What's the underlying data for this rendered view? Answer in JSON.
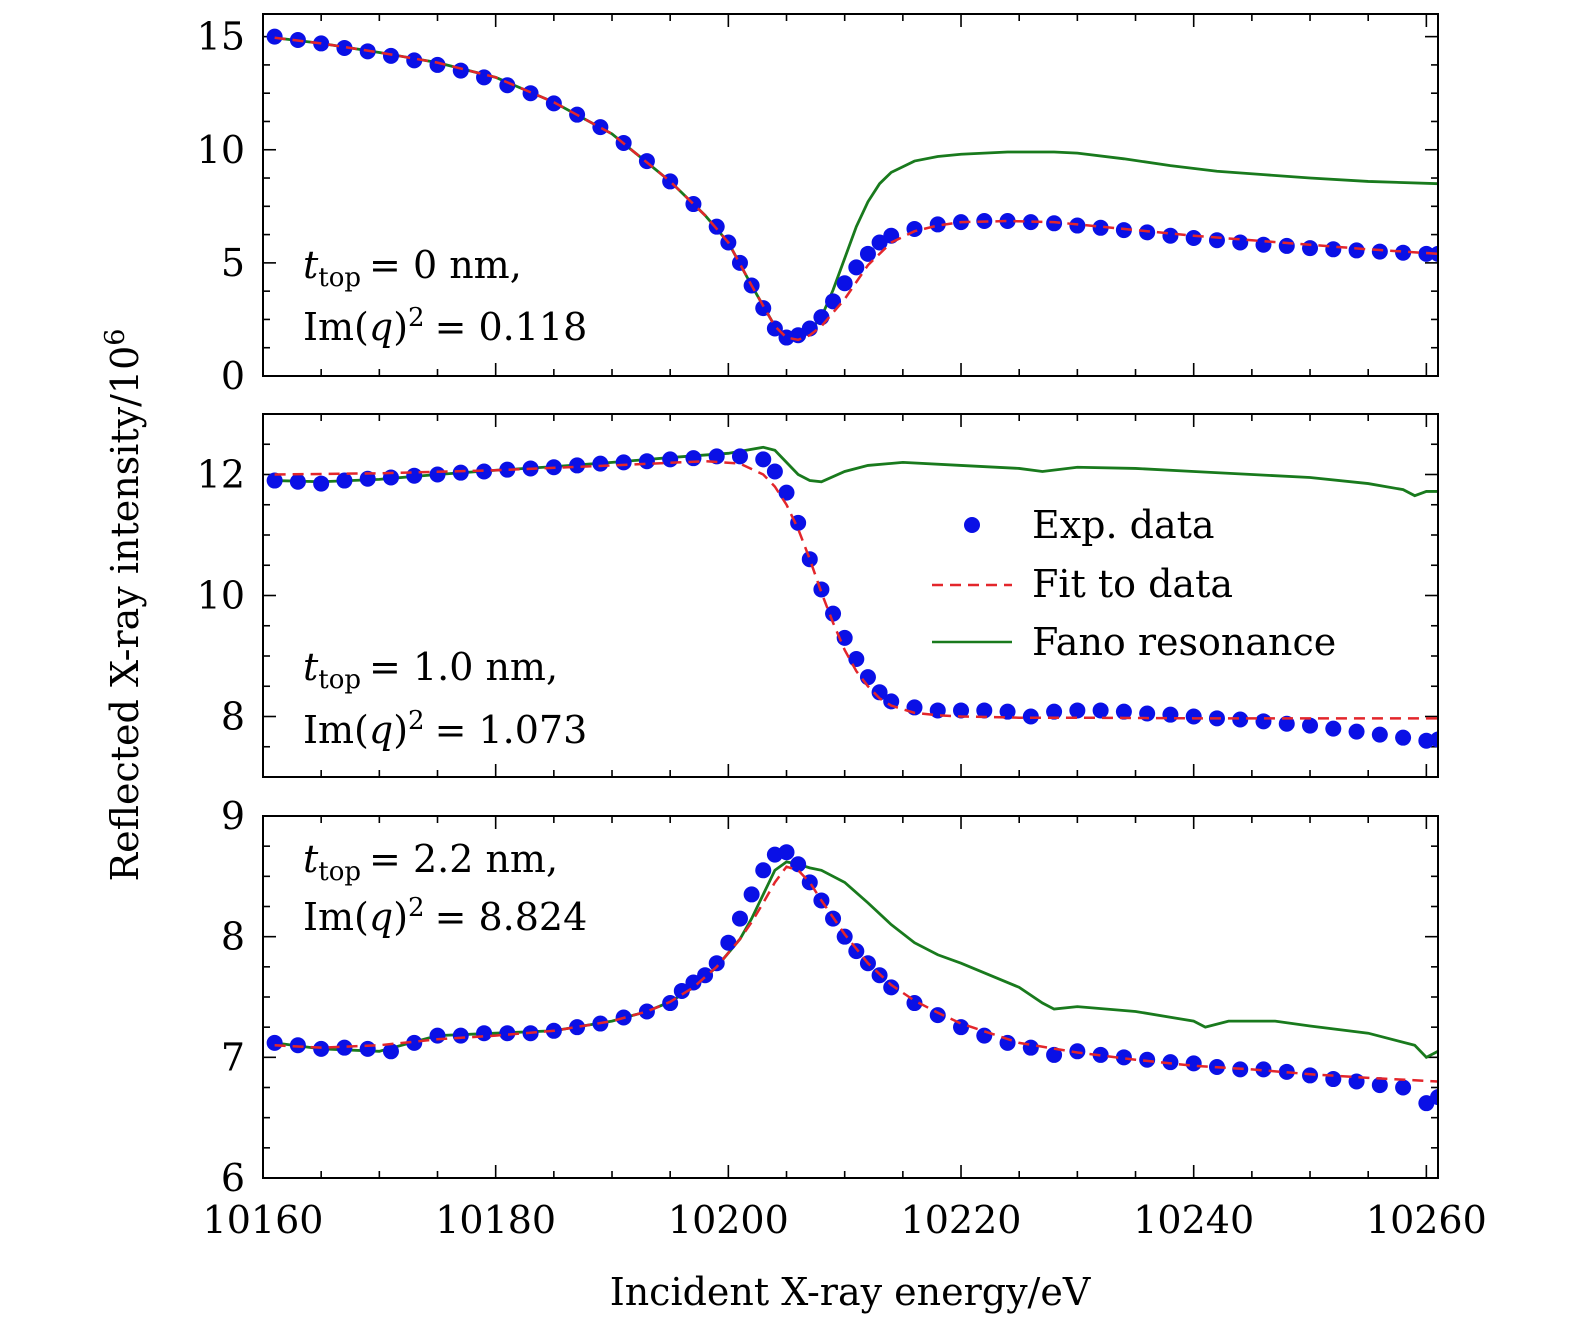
{
  "chart_data": {
    "type": "line",
    "xlabel": "Incident X-ray energy/eV",
    "ylabel_main": "Reflected X-ray intensity/10",
    "ylabel_exp": "6",
    "xlim": [
      10160,
      10261
    ],
    "xticks": [
      10160,
      10180,
      10200,
      10220,
      10240,
      10260
    ],
    "colors": {
      "exp": "#0a10e6",
      "fit": "#e3262b",
      "fano": "#197a1d"
    },
    "legend": {
      "placement": "middle-right of second panel",
      "entries": [
        {
          "key": "exp",
          "label": "Exp. data"
        },
        {
          "key": "fit",
          "label": "Fit to data"
        },
        {
          "key": "fano",
          "label": "Fano resonance"
        }
      ]
    },
    "panels": [
      {
        "ylim": [
          0,
          16
        ],
        "yticks": [
          0,
          5,
          10,
          15
        ],
        "annotation": {
          "t_value": "= 0 nm,",
          "imq_value": "= 0.118"
        },
        "exp": {
          "x": [
            10161,
            10163,
            10165,
            10167,
            10169,
            10171,
            10173,
            10175,
            10177,
            10179,
            10181,
            10183,
            10185,
            10187,
            10189,
            10191,
            10193,
            10195,
            10197,
            10199,
            10200,
            10201,
            10202,
            10203,
            10204,
            10205,
            10206,
            10207,
            10208,
            10209,
            10210,
            10211,
            10212,
            10213,
            10214,
            10216,
            10218,
            10220,
            10222,
            10224,
            10226,
            10228,
            10230,
            10232,
            10234,
            10236,
            10238,
            10240,
            10242,
            10244,
            10246,
            10248,
            10250,
            10252,
            10254,
            10256,
            10258,
            10260,
            10261
          ],
          "y": [
            15.0,
            14.85,
            14.7,
            14.5,
            14.35,
            14.15,
            13.95,
            13.75,
            13.5,
            13.2,
            12.85,
            12.5,
            12.05,
            11.55,
            11.0,
            10.3,
            9.5,
            8.6,
            7.6,
            6.6,
            5.9,
            5.0,
            4.0,
            3.0,
            2.1,
            1.7,
            1.8,
            2.1,
            2.6,
            3.3,
            4.1,
            4.8,
            5.4,
            5.9,
            6.2,
            6.5,
            6.7,
            6.8,
            6.85,
            6.85,
            6.8,
            6.75,
            6.65,
            6.55,
            6.45,
            6.35,
            6.2,
            6.1,
            6.0,
            5.9,
            5.8,
            5.75,
            5.65,
            5.6,
            5.55,
            5.5,
            5.45,
            5.4,
            5.4
          ]
        },
        "fit": {
          "x": [
            10161,
            10165,
            10170,
            10175,
            10180,
            10185,
            10190,
            10195,
            10198,
            10200,
            10202,
            10204,
            10205,
            10206,
            10207,
            10208,
            10210,
            10212,
            10214,
            10216,
            10218,
            10220,
            10224,
            10228,
            10232,
            10236,
            10240,
            10245,
            10250,
            10255,
            10261
          ],
          "y": [
            14.95,
            14.7,
            14.3,
            13.85,
            13.2,
            12.1,
            10.7,
            8.6,
            7.1,
            5.9,
            4.0,
            2.2,
            1.7,
            1.6,
            1.8,
            2.2,
            3.4,
            4.9,
            5.9,
            6.4,
            6.65,
            6.8,
            6.85,
            6.8,
            6.6,
            6.4,
            6.2,
            6.0,
            5.8,
            5.6,
            5.4
          ]
        },
        "fano": {
          "x": [
            10161,
            10165,
            10170,
            10175,
            10180,
            10185,
            10190,
            10195,
            10198,
            10200,
            10202,
            10204,
            10205,
            10206,
            10207,
            10208,
            10209,
            10210,
            10211,
            10212,
            10213,
            10214,
            10216,
            10218,
            10220,
            10224,
            10228,
            10230,
            10234,
            10238,
            10242,
            10246,
            10250,
            10255,
            10261
          ],
          "y": [
            14.95,
            14.7,
            14.3,
            13.85,
            13.2,
            12.1,
            10.7,
            8.6,
            7.1,
            5.9,
            4.0,
            2.2,
            1.7,
            1.7,
            2.0,
            2.6,
            3.8,
            5.2,
            6.6,
            7.7,
            8.5,
            9.0,
            9.5,
            9.7,
            9.8,
            9.9,
            9.9,
            9.85,
            9.6,
            9.3,
            9.05,
            8.9,
            8.75,
            8.6,
            8.5
          ]
        }
      },
      {
        "ylim": [
          7.0,
          13.0
        ],
        "yticks": [
          8,
          10,
          12
        ],
        "annotation": {
          "t_value": "= 1.0 nm,",
          "imq_value": "= 1.073"
        },
        "exp": {
          "x": [
            10161,
            10163,
            10165,
            10167,
            10169,
            10171,
            10173,
            10175,
            10177,
            10179,
            10181,
            10183,
            10185,
            10187,
            10189,
            10191,
            10193,
            10195,
            10197,
            10199,
            10201,
            10203,
            10204,
            10205,
            10206,
            10207,
            10208,
            10209,
            10210,
            10211,
            10212,
            10213,
            10214,
            10216,
            10218,
            10220,
            10222,
            10224,
            10226,
            10228,
            10230,
            10232,
            10234,
            10236,
            10238,
            10240,
            10242,
            10244,
            10246,
            10248,
            10250,
            10252,
            10254,
            10256,
            10258,
            10260,
            10261
          ],
          "y": [
            11.9,
            11.88,
            11.85,
            11.9,
            11.93,
            11.95,
            11.98,
            12.0,
            12.03,
            12.05,
            12.08,
            12.1,
            12.12,
            12.15,
            12.18,
            12.2,
            12.22,
            12.25,
            12.27,
            12.3,
            12.3,
            12.25,
            12.05,
            11.7,
            11.2,
            10.6,
            10.1,
            9.7,
            9.3,
            8.95,
            8.65,
            8.4,
            8.25,
            8.15,
            8.1,
            8.1,
            8.1,
            8.08,
            8.0,
            8.08,
            8.1,
            8.1,
            8.08,
            8.05,
            8.03,
            8.0,
            7.97,
            7.95,
            7.92,
            7.88,
            7.85,
            7.8,
            7.75,
            7.7,
            7.65,
            7.6,
            7.62
          ]
        },
        "fit": {
          "x": [
            10161,
            10170,
            10180,
            10190,
            10198,
            10201,
            10203,
            10204,
            10205,
            10206,
            10207,
            10208,
            10209,
            10210,
            10211,
            10212,
            10213,
            10214,
            10216,
            10218,
            10220,
            10225,
            10230,
            10240,
            10250,
            10261
          ],
          "y": [
            12.0,
            12.02,
            12.07,
            12.15,
            12.22,
            12.18,
            12.0,
            11.8,
            11.5,
            11.1,
            10.6,
            10.05,
            9.55,
            9.1,
            8.75,
            8.5,
            8.3,
            8.18,
            8.06,
            8.02,
            8.0,
            7.98,
            7.98,
            7.97,
            7.97,
            7.97
          ]
        },
        "fano": {
          "x": [
            10161,
            10165,
            10170,
            10175,
            10180,
            10185,
            10190,
            10195,
            10200,
            10203,
            10204,
            10205,
            10206,
            10207,
            10208,
            10210,
            10212,
            10215,
            10220,
            10225,
            10227,
            10230,
            10235,
            10240,
            10245,
            10250,
            10255,
            10258,
            10259,
            10260,
            10261
          ],
          "y": [
            11.9,
            11.88,
            11.92,
            12.0,
            12.07,
            12.13,
            12.2,
            12.28,
            12.35,
            12.45,
            12.4,
            12.2,
            12.0,
            11.9,
            11.88,
            12.05,
            12.15,
            12.2,
            12.15,
            12.1,
            12.05,
            12.12,
            12.1,
            12.05,
            12.0,
            11.95,
            11.85,
            11.75,
            11.65,
            11.72,
            11.72
          ]
        }
      },
      {
        "ylim": [
          6.0,
          9.0
        ],
        "yticks": [
          6,
          7,
          8,
          9
        ],
        "annotation": {
          "t_value": "= 2.2 nm,",
          "imq_value": "= 8.824"
        },
        "exp": {
          "x": [
            10161,
            10163,
            10165,
            10167,
            10169,
            10171,
            10173,
            10175,
            10177,
            10179,
            10181,
            10183,
            10185,
            10187,
            10189,
            10191,
            10193,
            10195,
            10196,
            10197,
            10198,
            10199,
            10200,
            10201,
            10202,
            10203,
            10204,
            10205,
            10206,
            10207,
            10208,
            10209,
            10210,
            10211,
            10212,
            10213,
            10214,
            10216,
            10218,
            10220,
            10222,
            10224,
            10226,
            10228,
            10230,
            10232,
            10234,
            10236,
            10238,
            10240,
            10242,
            10244,
            10246,
            10248,
            10250,
            10252,
            10254,
            10256,
            10258,
            10260,
            10261
          ],
          "y": [
            7.12,
            7.1,
            7.07,
            7.08,
            7.07,
            7.05,
            7.12,
            7.18,
            7.18,
            7.2,
            7.2,
            7.2,
            7.22,
            7.25,
            7.28,
            7.33,
            7.38,
            7.45,
            7.55,
            7.62,
            7.68,
            7.78,
            7.95,
            8.15,
            8.35,
            8.55,
            8.68,
            8.7,
            8.6,
            8.45,
            8.3,
            8.15,
            8.0,
            7.88,
            7.78,
            7.68,
            7.58,
            7.45,
            7.35,
            7.25,
            7.18,
            7.12,
            7.08,
            7.02,
            7.05,
            7.02,
            7.0,
            6.98,
            6.96,
            6.95,
            6.92,
            6.9,
            6.9,
            6.88,
            6.85,
            6.82,
            6.8,
            6.77,
            6.75,
            6.62,
            6.67
          ]
        },
        "fit": {
          "x": [
            10161,
            10165,
            10170,
            10175,
            10180,
            10185,
            10190,
            10193,
            10195,
            10197,
            10199,
            10201,
            10202,
            10203,
            10204,
            10205,
            10206,
            10207,
            10208,
            10210,
            10212,
            10214,
            10216,
            10218,
            10220,
            10225,
            10230,
            10235,
            10240,
            10245,
            10250,
            10255,
            10261
          ],
          "y": [
            7.1,
            7.08,
            7.1,
            7.15,
            7.18,
            7.22,
            7.3,
            7.38,
            7.46,
            7.58,
            7.75,
            7.98,
            8.12,
            8.28,
            8.45,
            8.58,
            8.55,
            8.45,
            8.3,
            8.02,
            7.78,
            7.6,
            7.47,
            7.37,
            7.28,
            7.12,
            7.04,
            6.98,
            6.93,
            6.9,
            6.86,
            6.83,
            6.8
          ]
        },
        "fano": {
          "x": [
            10161,
            10165,
            10170,
            10175,
            10180,
            10185,
            10190,
            10193,
            10195,
            10197,
            10199,
            10201,
            10202,
            10203,
            10204,
            10205,
            10206,
            10207,
            10208,
            10210,
            10212,
            10214,
            10216,
            10218,
            10220,
            10225,
            10227,
            10228,
            10230,
            10235,
            10240,
            10241,
            10243,
            10245,
            10247,
            10250,
            10255,
            10259,
            10260,
            10261
          ],
          "y": [
            7.12,
            7.07,
            7.05,
            7.18,
            7.2,
            7.22,
            7.3,
            7.38,
            7.46,
            7.58,
            7.75,
            7.98,
            8.15,
            8.35,
            8.55,
            8.62,
            8.6,
            8.57,
            8.55,
            8.45,
            8.28,
            8.1,
            7.95,
            7.85,
            7.78,
            7.58,
            7.45,
            7.4,
            7.42,
            7.38,
            7.3,
            7.25,
            7.3,
            7.3,
            7.3,
            7.26,
            7.2,
            7.1,
            7.0,
            7.05
          ]
        }
      }
    ]
  }
}
